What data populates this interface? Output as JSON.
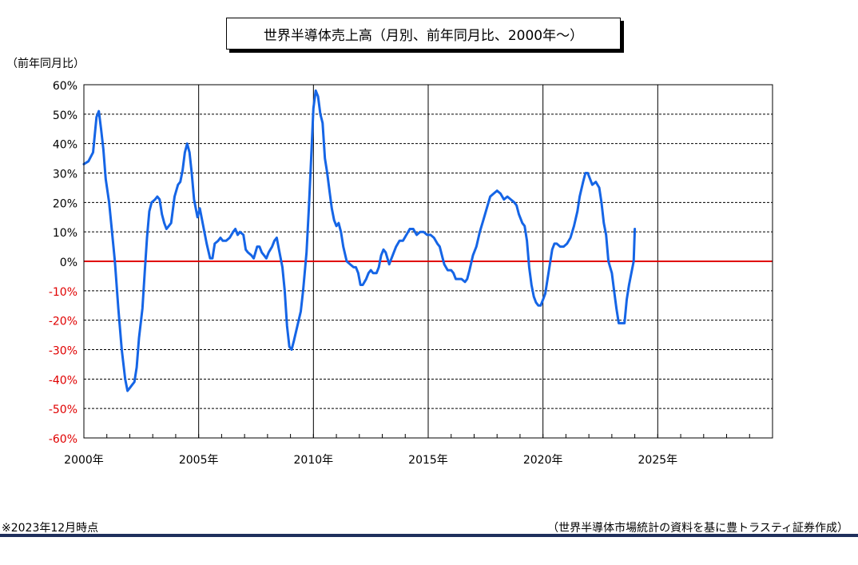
{
  "chart_data": {
    "type": "line",
    "title": "世界半導体売上高（月別、前年同月比、2000年～）",
    "ylabel": "（前年同月比）",
    "xlabel": "",
    "xlim": [
      2000,
      2030
    ],
    "ylim": [
      -60,
      60
    ],
    "x_ticks": [
      2000,
      2005,
      2010,
      2015,
      2020,
      2025
    ],
    "x_tick_labels": [
      "2000年",
      "2005年",
      "2010年",
      "2015年",
      "2020年",
      "2025年"
    ],
    "y_ticks": [
      60,
      50,
      40,
      30,
      20,
      10,
      0,
      -10,
      -20,
      -30,
      -40,
      -50,
      -60
    ],
    "y_tick_labels": [
      "60%",
      "50%",
      "40%",
      "30%",
      "20%",
      "10%",
      "0%",
      "-10%",
      "-20%",
      "-30%",
      "-40%",
      "-50%",
      "-60%"
    ],
    "grid": true,
    "zero_line_color": "#e00000",
    "negative_label_color": "#e00000",
    "series": [
      {
        "color": "#1565e6",
        "points": [
          [
            2000.0,
            33
          ],
          [
            2000.2,
            34
          ],
          [
            2000.4,
            37
          ],
          [
            2000.55,
            49
          ],
          [
            2000.65,
            51
          ],
          [
            2000.75,
            45
          ],
          [
            2000.85,
            38
          ],
          [
            2000.95,
            28
          ],
          [
            2001.1,
            20
          ],
          [
            2001.2,
            12
          ],
          [
            2001.35,
            0
          ],
          [
            2001.5,
            -16
          ],
          [
            2001.65,
            -30
          ],
          [
            2001.8,
            -40
          ],
          [
            2001.9,
            -44
          ],
          [
            2002.0,
            -43
          ],
          [
            2002.1,
            -42
          ],
          [
            2002.2,
            -41
          ],
          [
            2002.3,
            -36
          ],
          [
            2002.4,
            -26
          ],
          [
            2002.55,
            -16
          ],
          [
            2002.65,
            -4
          ],
          [
            2002.75,
            8
          ],
          [
            2002.85,
            17
          ],
          [
            2002.95,
            20
          ],
          [
            2003.1,
            21
          ],
          [
            2003.2,
            22
          ],
          [
            2003.3,
            21
          ],
          [
            2003.4,
            16
          ],
          [
            2003.5,
            13
          ],
          [
            2003.6,
            11
          ],
          [
            2003.7,
            12
          ],
          [
            2003.8,
            13
          ],
          [
            2003.95,
            22
          ],
          [
            2004.1,
            26
          ],
          [
            2004.2,
            27
          ],
          [
            2004.3,
            31
          ],
          [
            2004.4,
            37
          ],
          [
            2004.5,
            40
          ],
          [
            2004.6,
            37
          ],
          [
            2004.7,
            30
          ],
          [
            2004.8,
            21
          ],
          [
            2004.95,
            15
          ],
          [
            2005.05,
            18
          ],
          [
            2005.2,
            12
          ],
          [
            2005.35,
            6
          ],
          [
            2005.5,
            1
          ],
          [
            2005.6,
            1
          ],
          [
            2005.7,
            6
          ],
          [
            2005.85,
            7
          ],
          [
            2005.95,
            8
          ],
          [
            2006.05,
            7
          ],
          [
            2006.2,
            7
          ],
          [
            2006.35,
            8
          ],
          [
            2006.5,
            10
          ],
          [
            2006.6,
            11
          ],
          [
            2006.7,
            9
          ],
          [
            2006.8,
            10
          ],
          [
            2006.95,
            9
          ],
          [
            2007.05,
            4
          ],
          [
            2007.15,
            3
          ],
          [
            2007.3,
            2
          ],
          [
            2007.4,
            1
          ],
          [
            2007.55,
            5
          ],
          [
            2007.65,
            5
          ],
          [
            2007.75,
            3
          ],
          [
            2007.85,
            2
          ],
          [
            2007.95,
            1
          ],
          [
            2008.05,
            3
          ],
          [
            2008.2,
            5
          ],
          [
            2008.3,
            7
          ],
          [
            2008.4,
            8
          ],
          [
            2008.5,
            4
          ],
          [
            2008.65,
            -2
          ],
          [
            2008.75,
            -10
          ],
          [
            2008.85,
            -22
          ],
          [
            2008.95,
            -29
          ],
          [
            2009.05,
            -30
          ],
          [
            2009.15,
            -27
          ],
          [
            2009.3,
            -22
          ],
          [
            2009.45,
            -17
          ],
          [
            2009.55,
            -10
          ],
          [
            2009.7,
            3
          ],
          [
            2009.8,
            18
          ],
          [
            2009.9,
            35
          ],
          [
            2010.0,
            52
          ],
          [
            2010.1,
            58
          ],
          [
            2010.2,
            56
          ],
          [
            2010.3,
            50
          ],
          [
            2010.4,
            47
          ],
          [
            2010.5,
            35
          ],
          [
            2010.6,
            30
          ],
          [
            2010.7,
            24
          ],
          [
            2010.8,
            18
          ],
          [
            2010.9,
            14
          ],
          [
            2011.0,
            12
          ],
          [
            2011.1,
            13
          ],
          [
            2011.2,
            10
          ],
          [
            2011.3,
            5
          ],
          [
            2011.45,
            0
          ],
          [
            2011.6,
            -1
          ],
          [
            2011.75,
            -2
          ],
          [
            2011.85,
            -2
          ],
          [
            2011.95,
            -4
          ],
          [
            2012.05,
            -8
          ],
          [
            2012.15,
            -8
          ],
          [
            2012.3,
            -6
          ],
          [
            2012.4,
            -4
          ],
          [
            2012.5,
            -3
          ],
          [
            2012.6,
            -4
          ],
          [
            2012.75,
            -4
          ],
          [
            2012.85,
            -2
          ],
          [
            2012.95,
            2
          ],
          [
            2013.05,
            4
          ],
          [
            2013.15,
            3
          ],
          [
            2013.3,
            -1
          ],
          [
            2013.45,
            2
          ],
          [
            2013.6,
            5
          ],
          [
            2013.75,
            7
          ],
          [
            2013.9,
            7
          ],
          [
            2014.05,
            9
          ],
          [
            2014.2,
            11
          ],
          [
            2014.35,
            11
          ],
          [
            2014.5,
            9
          ],
          [
            2014.65,
            10
          ],
          [
            2014.8,
            10
          ],
          [
            2014.95,
            9
          ],
          [
            2015.1,
            9
          ],
          [
            2015.25,
            8
          ],
          [
            2015.4,
            6
          ],
          [
            2015.5,
            5
          ],
          [
            2015.6,
            2
          ],
          [
            2015.7,
            -1
          ],
          [
            2015.85,
            -3
          ],
          [
            2016.0,
            -3
          ],
          [
            2016.1,
            -4
          ],
          [
            2016.2,
            -6
          ],
          [
            2016.3,
            -6
          ],
          [
            2016.45,
            -6
          ],
          [
            2016.6,
            -7
          ],
          [
            2016.7,
            -6
          ],
          [
            2016.8,
            -3
          ],
          [
            2016.95,
            2
          ],
          [
            2017.1,
            5
          ],
          [
            2017.25,
            10
          ],
          [
            2017.4,
            14
          ],
          [
            2017.55,
            18
          ],
          [
            2017.7,
            22
          ],
          [
            2017.85,
            23
          ],
          [
            2018.0,
            24
          ],
          [
            2018.15,
            23
          ],
          [
            2018.3,
            21
          ],
          [
            2018.45,
            22
          ],
          [
            2018.6,
            21
          ],
          [
            2018.75,
            20
          ],
          [
            2018.85,
            19
          ],
          [
            2018.95,
            16
          ],
          [
            2019.1,
            13
          ],
          [
            2019.2,
            12
          ],
          [
            2019.3,
            7
          ],
          [
            2019.4,
            -2
          ],
          [
            2019.5,
            -8
          ],
          [
            2019.6,
            -12
          ],
          [
            2019.7,
            -14
          ],
          [
            2019.8,
            -15
          ],
          [
            2019.9,
            -15
          ],
          [
            2020.0,
            -13
          ],
          [
            2020.1,
            -11
          ],
          [
            2020.2,
            -6
          ],
          [
            2020.3,
            -1
          ],
          [
            2020.4,
            4
          ],
          [
            2020.5,
            6
          ],
          [
            2020.6,
            6
          ],
          [
            2020.75,
            5
          ],
          [
            2020.9,
            5
          ],
          [
            2021.05,
            6
          ],
          [
            2021.2,
            8
          ],
          [
            2021.35,
            12
          ],
          [
            2021.5,
            17
          ],
          [
            2021.6,
            22
          ],
          [
            2021.75,
            27
          ],
          [
            2021.85,
            30
          ],
          [
            2021.95,
            30
          ],
          [
            2022.05,
            28
          ],
          [
            2022.15,
            26
          ],
          [
            2022.3,
            27
          ],
          [
            2022.45,
            25
          ],
          [
            2022.55,
            20
          ],
          [
            2022.65,
            13
          ],
          [
            2022.75,
            9
          ],
          [
            2022.85,
            0
          ],
          [
            2023.0,
            -4
          ],
          [
            2023.1,
            -10
          ],
          [
            2023.2,
            -16
          ],
          [
            2023.3,
            -21
          ],
          [
            2023.45,
            -21
          ],
          [
            2023.55,
            -21
          ],
          [
            2023.65,
            -13
          ],
          [
            2023.75,
            -8
          ],
          [
            2023.85,
            -4
          ],
          [
            2023.95,
            0
          ],
          [
            2024.0,
            11
          ]
        ]
      }
    ]
  },
  "notes": {
    "left": "※2023年12月時点",
    "right": "（世界半導体市場統計の資料を基に豊トラスティ証券作成）"
  }
}
